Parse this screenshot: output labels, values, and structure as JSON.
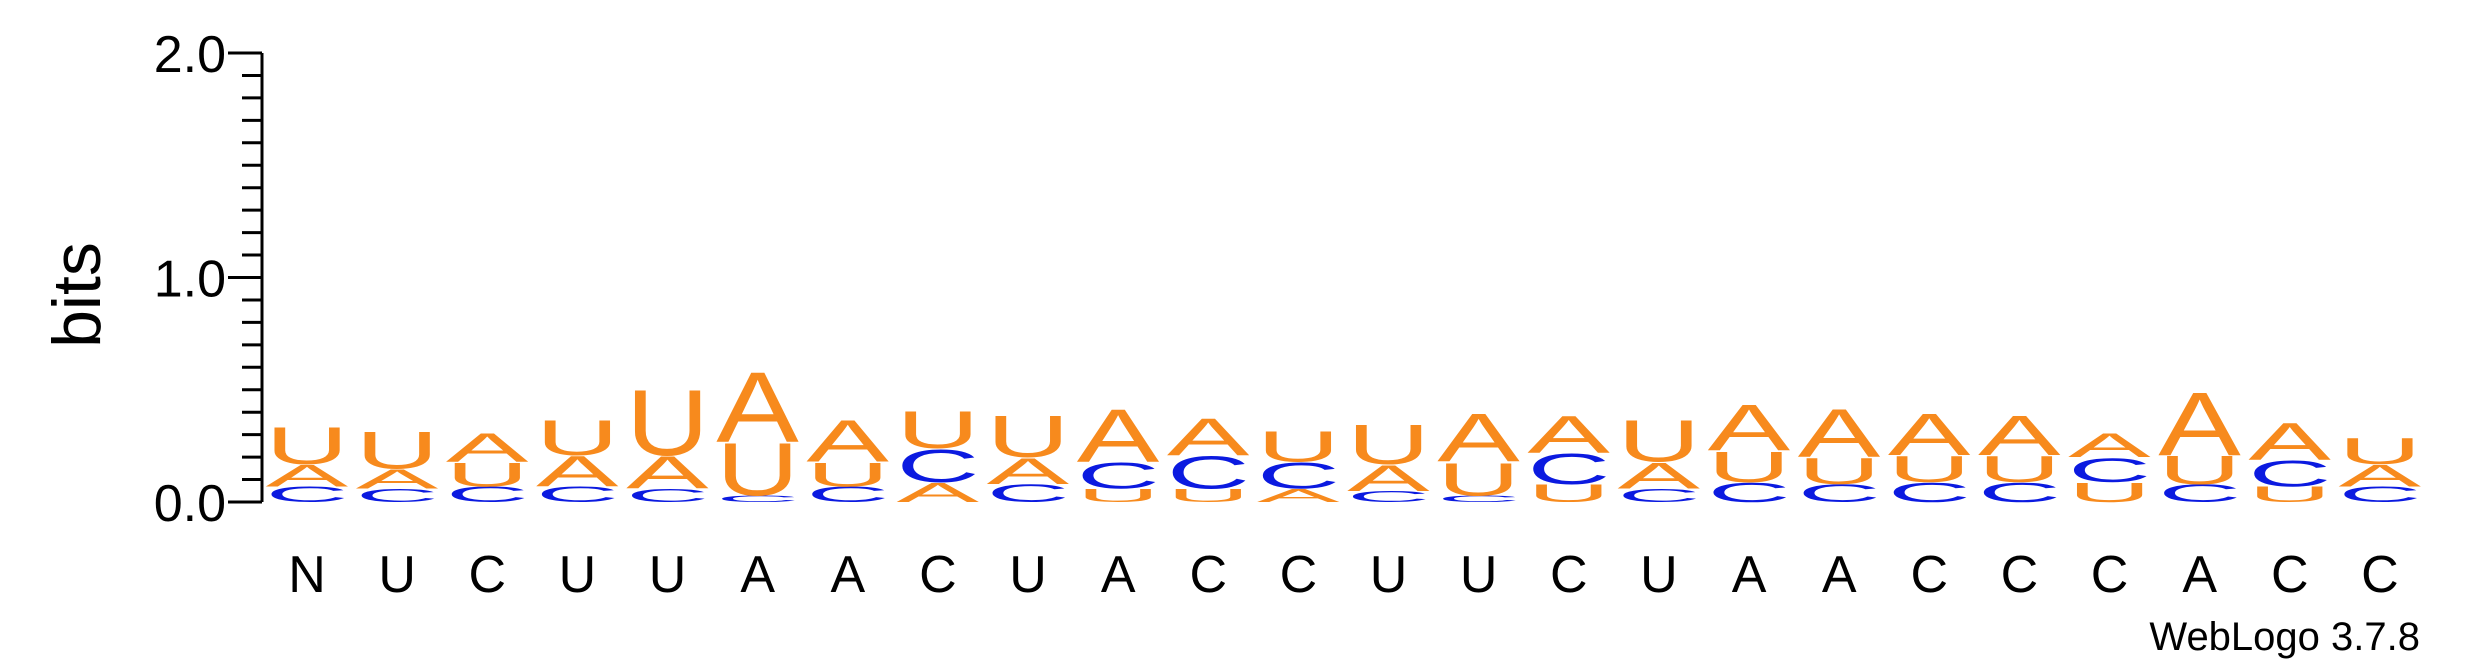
{
  "chart_data": {
    "type": "sequence-logo",
    "ylabel": "bits",
    "ylim": [
      0,
      2.0
    ],
    "yticks": [
      "0.0",
      "1.0",
      "2.0"
    ],
    "colors": {
      "A": "#f78a1d",
      "U": "#f78a1d",
      "C": "#0b1ae0",
      "G": "#0b1ae0"
    },
    "positions": [
      {
        "label": "N",
        "stack": [
          [
            "C",
            0.07
          ],
          [
            "A",
            0.1
          ],
          [
            "U",
            0.17
          ]
        ]
      },
      {
        "label": "U",
        "stack": [
          [
            "C",
            0.06
          ],
          [
            "A",
            0.09
          ],
          [
            "U",
            0.17
          ]
        ]
      },
      {
        "label": "C",
        "stack": [
          [
            "C",
            0.07
          ],
          [
            "U",
            0.11
          ],
          [
            "A",
            0.13
          ]
        ]
      },
      {
        "label": "U",
        "stack": [
          [
            "C",
            0.07
          ],
          [
            "A",
            0.14
          ],
          [
            "U",
            0.16
          ]
        ]
      },
      {
        "label": "U",
        "stack": [
          [
            "C",
            0.06
          ],
          [
            "A",
            0.15
          ],
          [
            "U",
            0.3
          ]
        ]
      },
      {
        "label": "A",
        "stack": [
          [
            "C",
            0.03
          ],
          [
            "U",
            0.24
          ],
          [
            "A",
            0.32
          ]
        ]
      },
      {
        "label": "A",
        "stack": [
          [
            "C",
            0.07
          ],
          [
            "U",
            0.11
          ],
          [
            "A",
            0.19
          ]
        ]
      },
      {
        "label": "C",
        "stack": [
          [
            "A",
            0.09
          ],
          [
            "C",
            0.15
          ],
          [
            "U",
            0.17
          ]
        ]
      },
      {
        "label": "U",
        "stack": [
          [
            "C",
            0.08
          ],
          [
            "A",
            0.12
          ],
          [
            "U",
            0.19
          ]
        ]
      },
      {
        "label": "A",
        "stack": [
          [
            "U",
            0.06
          ],
          [
            "C",
            0.12
          ],
          [
            "A",
            0.24
          ]
        ]
      },
      {
        "label": "C",
        "stack": [
          [
            "U",
            0.06
          ],
          [
            "C",
            0.15
          ],
          [
            "A",
            0.17
          ]
        ]
      },
      {
        "label": "C",
        "stack": [
          [
            "A",
            0.06
          ],
          [
            "C",
            0.12
          ],
          [
            "U",
            0.14
          ]
        ]
      },
      {
        "label": "U",
        "stack": [
          [
            "C",
            0.05
          ],
          [
            "A",
            0.12
          ],
          [
            "U",
            0.18
          ]
        ]
      },
      {
        "label": "U",
        "stack": [
          [
            "C",
            0.03
          ],
          [
            "U",
            0.15
          ],
          [
            "A",
            0.22
          ]
        ]
      },
      {
        "label": "C",
        "stack": [
          [
            "U",
            0.08
          ],
          [
            "C",
            0.14
          ],
          [
            "A",
            0.17
          ]
        ]
      },
      {
        "label": "U",
        "stack": [
          [
            "C",
            0.06
          ],
          [
            "A",
            0.12
          ],
          [
            "U",
            0.19
          ]
        ]
      },
      {
        "label": "A",
        "stack": [
          [
            "C",
            0.09
          ],
          [
            "U",
            0.14
          ],
          [
            "A",
            0.21
          ]
        ]
      },
      {
        "label": "A",
        "stack": [
          [
            "C",
            0.08
          ],
          [
            "U",
            0.12
          ],
          [
            "A",
            0.22
          ]
        ]
      },
      {
        "label": "C",
        "stack": [
          [
            "C",
            0.09
          ],
          [
            "U",
            0.12
          ],
          [
            "A",
            0.19
          ]
        ]
      },
      {
        "label": "C",
        "stack": [
          [
            "C",
            0.09
          ],
          [
            "U",
            0.12
          ],
          [
            "A",
            0.18
          ]
        ]
      },
      {
        "label": "C",
        "stack": [
          [
            "U",
            0.09
          ],
          [
            "C",
            0.11
          ],
          [
            "A",
            0.11
          ]
        ]
      },
      {
        "label": "A",
        "stack": [
          [
            "C",
            0.08
          ],
          [
            "U",
            0.13
          ],
          [
            "A",
            0.29
          ]
        ]
      },
      {
        "label": "C",
        "stack": [
          [
            "U",
            0.07
          ],
          [
            "C",
            0.12
          ],
          [
            "A",
            0.17
          ]
        ]
      },
      {
        "label": "C",
        "stack": [
          [
            "C",
            0.07
          ],
          [
            "A",
            0.1
          ],
          [
            "U",
            0.12
          ]
        ]
      }
    ]
  },
  "credit": "WebLogo 3.7.8"
}
